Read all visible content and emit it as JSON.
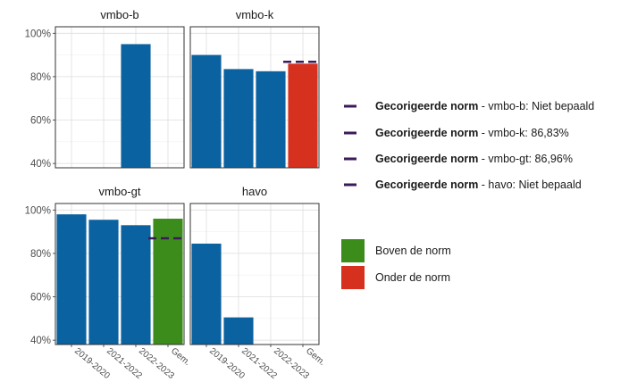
{
  "chart_data": {
    "type": "bar",
    "facets": [
      "vmbo-b",
      "vmbo-k",
      "vmbo-gt",
      "havo"
    ],
    "categories": [
      "2019-2020",
      "2021-2022",
      "2022-2023",
      "Gem."
    ],
    "yticks": [
      "40%",
      "60%",
      "80%",
      "100%"
    ],
    "ylim": [
      38,
      103
    ],
    "panels": [
      {
        "title": "vmbo-b",
        "values": [
          null,
          null,
          95,
          null
        ],
        "norm": null,
        "avg_status": null
      },
      {
        "title": "vmbo-k",
        "values": [
          90,
          83.5,
          82.5,
          86
        ],
        "norm": 86.83,
        "avg_status": "below"
      },
      {
        "title": "vmbo-gt",
        "values": [
          98,
          95.5,
          93,
          96
        ],
        "norm": 86.96,
        "avg_status": "above"
      },
      {
        "title": "havo",
        "values": [
          84.5,
          50.5,
          null,
          null
        ],
        "norm": null,
        "avg_status": null
      }
    ],
    "colors": {
      "bar": "#0a62a0",
      "above": "#3c8c1c",
      "below": "#d6301f",
      "norm": "#3b1a5a"
    },
    "legend_norm": [
      {
        "bold": "Gecorigeerde norm",
        "rest": " - vmbo-b: Niet bepaald"
      },
      {
        "bold": "Gecorigeerde norm",
        "rest": " - vmbo-k: 86,83%"
      },
      {
        "bold": "Gecorigeerde norm",
        "rest": " - vmbo-gt: 86,96%"
      },
      {
        "bold": "Gecorigeerde norm",
        "rest": " - havo: Niet bepaald"
      }
    ],
    "legend_fill": [
      {
        "label": "Boven de norm",
        "color": "#3c8c1c"
      },
      {
        "label": "Onder de norm",
        "color": "#d6301f"
      }
    ],
    "legend_placement": "right",
    "grid": true
  }
}
